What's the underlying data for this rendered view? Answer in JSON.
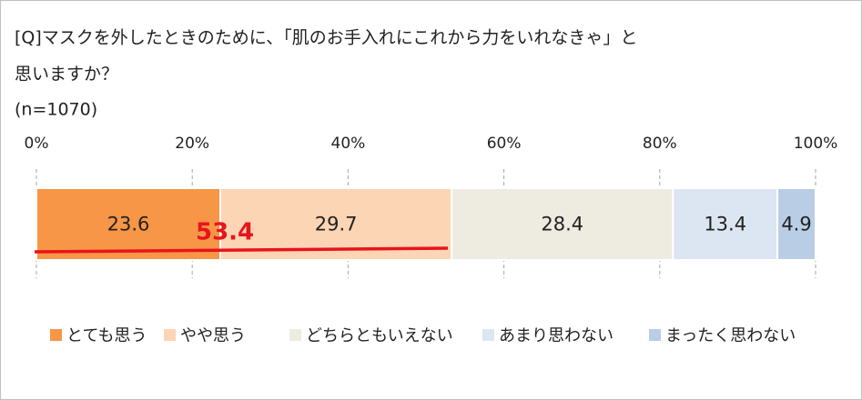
{
  "chart_data": {
    "type": "stacked_barh",
    "title": [
      "[Q]マスクを外したときのために、「肌のお手入れにこれから力をいれなきゃ」と",
      "思いますか？"
    ],
    "subtitle": "(n=1070)",
    "annotation": "53.4",
    "xlim": [
      0,
      100
    ],
    "xticks": [
      {
        "value": 0,
        "label": "0%"
      },
      {
        "value": 20,
        "label": "20%"
      },
      {
        "value": 40,
        "label": "40%"
      },
      {
        "value": 60,
        "label": "60%"
      },
      {
        "value": 80,
        "label": "80%"
      },
      {
        "value": 100,
        "label": "100%"
      }
    ],
    "grid": true,
    "series": [
      {
        "name": "とても思う",
        "color": "#f79646",
        "values": [
          23.6
        ]
      },
      {
        "name": "やや思う",
        "color": "#fcd5b5",
        "values": [
          29.7
        ]
      },
      {
        "name": "どちらともいえない",
        "color": "#eeece1",
        "values": [
          28.4
        ]
      },
      {
        "name": "あまり思わない",
        "color": "#dce6f2",
        "values": [
          13.4
        ]
      },
      {
        "name": "まったく思わない",
        "color": "#b9cde5",
        "values": [
          4.9
        ]
      }
    ]
  }
}
